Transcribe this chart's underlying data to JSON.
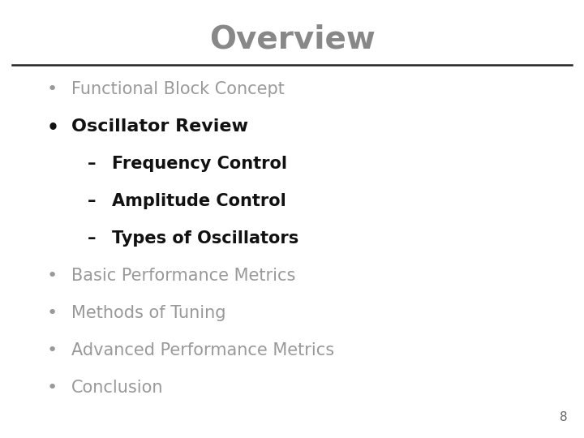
{
  "title": "Overview",
  "title_color": "#888888",
  "title_fontsize": 28,
  "title_font": "DejaVu Sans",
  "background_color": "#ffffff",
  "separator_color": "#222222",
  "page_number": "8",
  "page_number_color": "#666666",
  "page_number_fontsize": 11,
  "items": [
    {
      "type": "bullet",
      "indent": 0,
      "text": "Functional Block Concept",
      "color": "#999999",
      "bold": false,
      "fontsize": 15
    },
    {
      "type": "bullet",
      "indent": 0,
      "text": "Oscillator Review",
      "color": "#111111",
      "bold": true,
      "fontsize": 16
    },
    {
      "type": "dash",
      "indent": 1,
      "text": "Frequency Control",
      "color": "#111111",
      "bold": true,
      "fontsize": 15
    },
    {
      "type": "dash",
      "indent": 1,
      "text": "Amplitude Control",
      "color": "#111111",
      "bold": true,
      "fontsize": 15
    },
    {
      "type": "dash",
      "indent": 1,
      "text": "Types of Oscillators",
      "color": "#111111",
      "bold": true,
      "fontsize": 15
    },
    {
      "type": "bullet",
      "indent": 0,
      "text": "Basic Performance Metrics",
      "color": "#999999",
      "bold": false,
      "fontsize": 15
    },
    {
      "type": "bullet",
      "indent": 0,
      "text": "Methods of Tuning",
      "color": "#999999",
      "bold": false,
      "fontsize": 15
    },
    {
      "type": "bullet",
      "indent": 0,
      "text": "Advanced Performance Metrics",
      "color": "#999999",
      "bold": false,
      "fontsize": 15
    },
    {
      "type": "bullet",
      "indent": 0,
      "text": "Conclusion",
      "color": "#999999",
      "bold": false,
      "fontsize": 15
    }
  ]
}
